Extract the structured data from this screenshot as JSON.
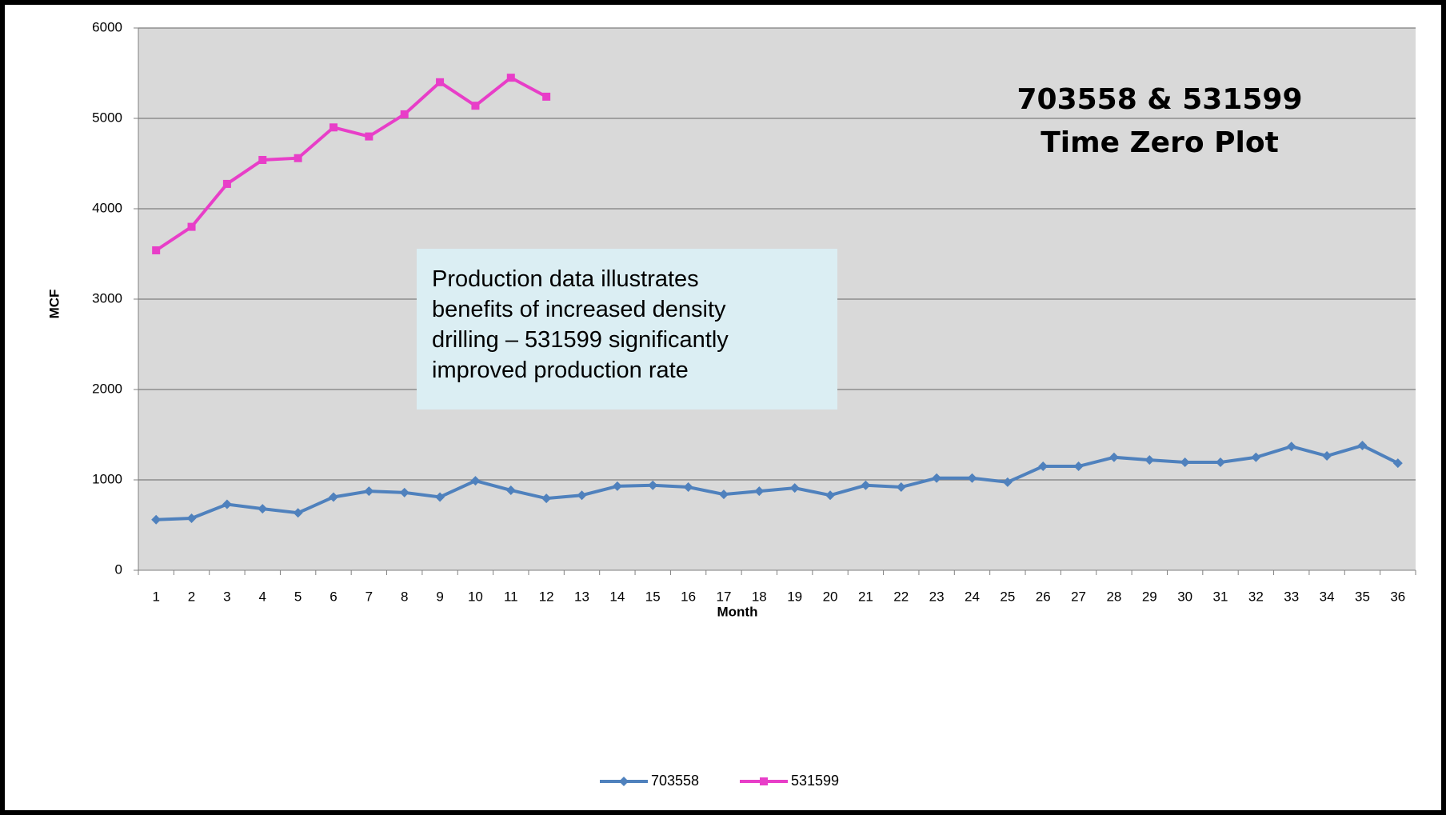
{
  "chart_data": {
    "type": "line",
    "title_lines": [
      "703558 & 531599",
      "Time Zero Plot"
    ],
    "annotation_lines": [
      "Production data illustrates",
      "benefits of increased density",
      "drilling – 531599 significantly",
      "improved production rate"
    ],
    "x_label": "Month",
    "y_label": "MCF",
    "categories": [
      "1",
      "2",
      "3",
      "4",
      "5",
      "6",
      "7",
      "8",
      "9",
      "10",
      "11",
      "12",
      "13",
      "14",
      "15",
      "16",
      "17",
      "18",
      "19",
      "20",
      "21",
      "22",
      "23",
      "24",
      "25",
      "26",
      "27",
      "28",
      "29",
      "30",
      "31",
      "32",
      "33",
      "34",
      "35",
      "36"
    ],
    "series": [
      {
        "name": "703558",
        "color": "#4f81bd",
        "marker": "diamond",
        "values": [
          560,
          575,
          730,
          680,
          635,
          810,
          875,
          860,
          810,
          990,
          885,
          795,
          830,
          930,
          940,
          920,
          840,
          875,
          910,
          830,
          940,
          920,
          1020,
          1020,
          975,
          1150,
          1150,
          1250,
          1220,
          1195,
          1195,
          1250,
          1370,
          1265,
          1380,
          1185
        ]
      },
      {
        "name": "531599",
        "color": "#e83ec8",
        "marker": "square",
        "values": [
          3540,
          3800,
          4275,
          4540,
          4560,
          4900,
          4800,
          5045,
          5400,
          5140,
          5450,
          5240,
          null,
          null,
          null,
          null,
          null,
          null,
          null,
          null,
          null,
          null,
          null,
          null,
          null,
          null,
          null,
          null,
          null,
          null,
          null,
          null,
          null,
          null,
          null,
          null
        ]
      }
    ],
    "ylim": [
      0,
      6000
    ],
    "yticks": [
      0,
      1000,
      2000,
      3000,
      4000,
      5000,
      6000
    ],
    "grid": true,
    "legend": "bottom"
  }
}
